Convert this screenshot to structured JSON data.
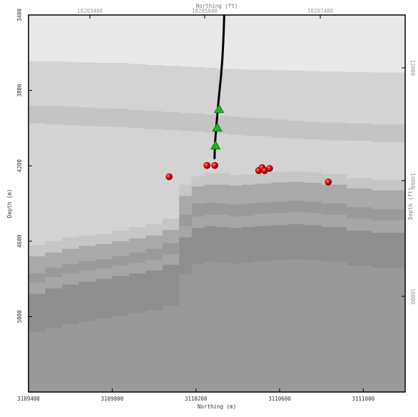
{
  "chart_data": {
    "type": "scatter",
    "title": "",
    "xlabel": "Northing (m)",
    "ylabel": "Depth (m)",
    "x2label": "Northing (ft)",
    "y2label": "Depth (ft)",
    "xlim": [
      3109400,
      3111200
    ],
    "ylim": [
      5400,
      3400
    ],
    "x_ticks": [
      3109400,
      3109800,
      3110200,
      3110600,
      3111000
    ],
    "x_tick_labels": [
      "3109400",
      "3109800",
      "3110200",
      "3110600",
      "3111000"
    ],
    "y_ticks": [
      3400,
      3800,
      4200,
      4600,
      5000
    ],
    "y_tick_labels": [
      "3400",
      "3800",
      "4200",
      "4600",
      "5000"
    ],
    "x2_ticks": [
      10203400,
      10205600,
      10207400
    ],
    "x2_tick_labels": [
      "10203400",
      "10205600",
      "10207400"
    ],
    "y2_ticks": [
      12000,
      14000,
      16000
    ],
    "y2_tick_labels": [
      "12000",
      "14000",
      "16000"
    ],
    "grid": false,
    "background_layers": [
      {
        "name": "",
        "color": "#d3d3d3",
        "top": [
          3645,
          3645,
          3648,
          3652,
          3655,
          3655,
          3660,
          3665,
          3670,
          3674,
          3676,
          3680,
          3684,
          3687,
          3690,
          3690,
          3692,
          3695,
          3698,
          3700,
          3703,
          3705,
          3708
        ]
      },
      {
        "name": "",
        "color": "#c4c4c4",
        "top": [
          3880,
          3882,
          3885,
          3890,
          3895,
          3897,
          3905,
          3910,
          3915,
          3920,
          3922,
          3928,
          3935,
          3940,
          3945,
          3948,
          3955,
          3960,
          3965,
          3970,
          3975,
          3980,
          3985
        ]
      },
      {
        "name": "",
        "color": "#d3d3d3",
        "top": [
          3975,
          3980,
          3985,
          3988,
          3992,
          3995,
          4000,
          4005,
          4010,
          4015,
          4018,
          4025,
          4030,
          4035,
          4040,
          4043,
          4050,
          4055,
          4060,
          4065,
          4068,
          4075,
          4080
        ]
      },
      {
        "name": "",
        "color": "#c6c6c6",
        "top": [
          4620,
          4600,
          4580,
          4570,
          4560,
          4545,
          4525,
          4510,
          4480,
          4300,
          4255,
          4240,
          4240,
          4250,
          4245,
          4240,
          4232,
          4230,
          4235,
          4245,
          4265,
          4275,
          4285
        ]
      },
      {
        "name": "",
        "color": "#a9a9a9",
        "top": [
          4680,
          4660,
          4640,
          4625,
          4615,
          4600,
          4585,
          4570,
          4540,
          4360,
          4310,
          4300,
          4300,
          4305,
          4300,
          4295,
          4288,
          4285,
          4290,
          4300,
          4320,
          4330,
          4340
        ]
      },
      {
        "name": "",
        "color": "#9a9a9a",
        "top": [
          4770,
          4740,
          4720,
          4705,
          4695,
          4680,
          4660,
          4640,
          4610,
          4460,
          4400,
          4395,
          4400,
          4405,
          4400,
          4395,
          4390,
          4385,
          4390,
          4400,
          4420,
          4430,
          4440
        ]
      },
      {
        "name": "",
        "color": "#a6a6a6",
        "top": [
          4820,
          4790,
          4770,
          4755,
          4745,
          4730,
          4715,
          4700,
          4670,
          4520,
          4470,
          4460,
          4460,
          4470,
          4465,
          4455,
          4450,
          4445,
          4450,
          4460,
          4480,
          4490,
          4500
        ]
      },
      {
        "name": "",
        "color": "#8f8f8f",
        "top": [
          4880,
          4850,
          4830,
          4815,
          4800,
          4785,
          4770,
          4755,
          4725,
          4580,
          4530,
          4520,
          4525,
          4530,
          4525,
          4520,
          4515,
          4510,
          4515,
          4525,
          4545,
          4555,
          4565
        ]
      },
      {
        "name": "",
        "color": "#999999",
        "top": [
          5080,
          5060,
          5040,
          5025,
          5010,
          4995,
          4980,
          4965,
          4940,
          4775,
          4720,
          4710,
          4715,
          4720,
          4715,
          4705,
          4700,
          4695,
          4700,
          4710,
          4730,
          4740,
          4750
        ]
      }
    ],
    "layer_x": [
      3109400,
      3109480,
      3109560,
      3109640,
      3109720,
      3109800,
      3109880,
      3109960,
      3110040,
      3110120,
      3110180,
      3110240,
      3110300,
      3110360,
      3110420,
      3110480,
      3110560,
      3110640,
      3110720,
      3110800,
      3110920,
      3111040,
      3111200
    ],
    "series": [
      {
        "kind": "well_path",
        "color": "#000000",
        "x": [
          3110335,
          3110333,
          3110330,
          3110326,
          3110320,
          3110313,
          3110306,
          3110300,
          3110294,
          3110290,
          3110289
        ],
        "y": [
          3400,
          3480,
          3560,
          3640,
          3720,
          3800,
          3880,
          3960,
          4040,
          4110,
          4160
        ]
      },
      {
        "kind": "receivers",
        "color": "#22aa22",
        "marker": "triangle",
        "x": [
          3110311,
          3110302,
          3110294
        ],
        "y": [
          3900,
          3998,
          4093
        ]
      },
      {
        "kind": "events",
        "color": "#dd0000",
        "marker": "circle",
        "x": [
          3110072,
          3110253,
          3110290,
          3110500,
          3110516,
          3110528,
          3110552,
          3110833
        ],
        "y": [
          4258,
          4198,
          4198,
          4225,
          4210,
          4225,
          4214,
          4286
        ]
      }
    ]
  }
}
